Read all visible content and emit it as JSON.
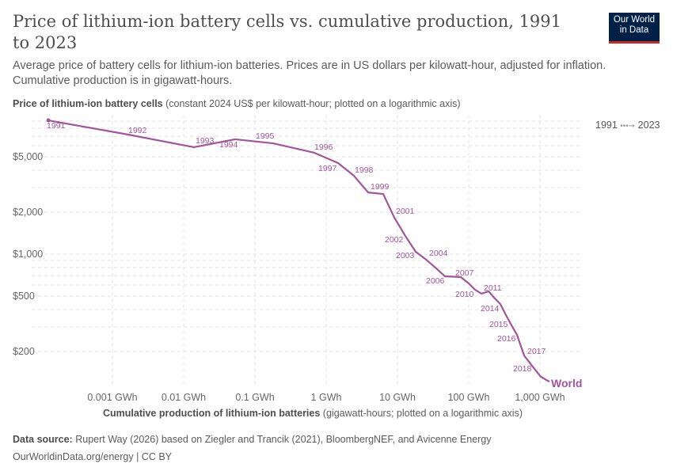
{
  "header": {
    "title": "Price of lithium-ion battery cells vs. cumulative production, 1991 to 2023",
    "subtitle": "Average price of battery cells for lithium-ion batteries. Prices are in US dollars per kilowatt-hour, adjusted for inflation. Cumulative production is in gigawatt-hours.",
    "logo": "Our World in Data"
  },
  "legend": {
    "start": "1991",
    "end": "2023"
  },
  "footer": {
    "source_label": "Data source:",
    "source": "Rupert Way (2026) based on Ziegler and Trancik (2021), BloombergNEF, and Avicenne Energy",
    "url": "OurWorldinData.org/energy | CC BY"
  },
  "chart_data": {
    "type": "line",
    "ylabel_bold": "Price of lithium-ion battery cells",
    "ylabel_rest": "(constant 2024 US$ per kilowatt-hour; plotted on a logarithmic axis)",
    "xlabel_bold": "Cumulative production of lithium-ion batteries",
    "xlabel_rest": "(gigawatt-hours; plotted on a logarithmic axis)",
    "x_scale": "log",
    "y_scale": "log",
    "x_ticks": [
      {
        "v": 0.001,
        "label": "0.001 GWh"
      },
      {
        "v": 0.01,
        "label": "0.01 GWh"
      },
      {
        "v": 0.1,
        "label": "0.1 GWh"
      },
      {
        "v": 1,
        "label": "1 GWh"
      },
      {
        "v": 10,
        "label": "10 GWh"
      },
      {
        "v": 100,
        "label": "100 GWh"
      },
      {
        "v": 1000,
        "label": "1,000 GWh"
      }
    ],
    "y_ticks": [
      {
        "v": 200,
        "label": "$200"
      },
      {
        "v": 500,
        "label": "$500"
      },
      {
        "v": 1000,
        "label": "$1,000"
      },
      {
        "v": 2000,
        "label": "$2,000"
      },
      {
        "v": 5000,
        "label": "$5,000"
      }
    ],
    "grid": true,
    "color": "#a2559c",
    "series": [
      {
        "name": "World",
        "points": [
          {
            "year": 1991,
            "x": 0.000126,
            "y": 9120
          },
          {
            "year": 1992,
            "x": 0.00166,
            "y": 7210
          },
          {
            "year": 1993,
            "x": 0.0139,
            "y": 5850
          },
          {
            "year": 1994,
            "x": 0.0527,
            "y": 6670
          },
          {
            "year": 1995,
            "x": 0.18,
            "y": 6240
          },
          {
            "year": 1996,
            "x": 0.681,
            "y": 5340
          },
          {
            "year": 1997,
            "x": 1.47,
            "y": 4500
          },
          {
            "year": 1998,
            "x": 2.45,
            "y": 3650
          },
          {
            "year": 1999,
            "x": 3.88,
            "y": 2770
          },
          {
            "year": 2000,
            "x": 6.31,
            "y": 2700
          },
          {
            "year": 2001,
            "x": 9.03,
            "y": 1830
          },
          {
            "year": 2002,
            "x": 12.9,
            "y": 1350
          },
          {
            "year": 2003,
            "x": 18.0,
            "y": 1040
          },
          {
            "year": 2004,
            "x": 24.5,
            "y": 925
          },
          {
            "year": 2005,
            "x": 34.1,
            "y": 800
          },
          {
            "year": 2006,
            "x": 46.4,
            "y": 693
          },
          {
            "year": 2007,
            "x": 77.4,
            "y": 684
          },
          {
            "year": 2008,
            "x": 100,
            "y": 616
          },
          {
            "year": 2009,
            "x": 123,
            "y": 555
          },
          {
            "year": 2010,
            "x": 151,
            "y": 520
          },
          {
            "year": 2011,
            "x": 190,
            "y": 541
          },
          {
            "year": 2012,
            "x": 227,
            "y": 487
          },
          {
            "year": 2013,
            "x": 278,
            "y": 438
          },
          {
            "year": 2014,
            "x": 324,
            "y": 375
          },
          {
            "year": 2015,
            "x": 388,
            "y": 316
          },
          {
            "year": 2016,
            "x": 476,
            "y": 263
          },
          {
            "year": 2017,
            "x": 600,
            "y": 187
          },
          {
            "year": 2018,
            "x": 774,
            "y": 158
          },
          {
            "year": 2019,
            "x": 1026,
            "y": 132
          },
          {
            "year": 2020,
            "x": 1136,
            "y": 128
          },
          {
            "year": 2021,
            "x": 1227,
            "y": 125
          },
          {
            "year": 2022,
            "x": 1291,
            "y": 123
          },
          {
            "year": 2023,
            "x": 1359,
            "y": 122
          }
        ]
      }
    ],
    "labeled_years": [
      "1991",
      "1992",
      "1993",
      "1994",
      "1995",
      "1996",
      "1997",
      "1998",
      "1999",
      "2001",
      "2002",
      "2003",
      "2004",
      "2006",
      "2007",
      "2010",
      "2011",
      "2014",
      "2015",
      "2016",
      "2017",
      "2018"
    ]
  }
}
